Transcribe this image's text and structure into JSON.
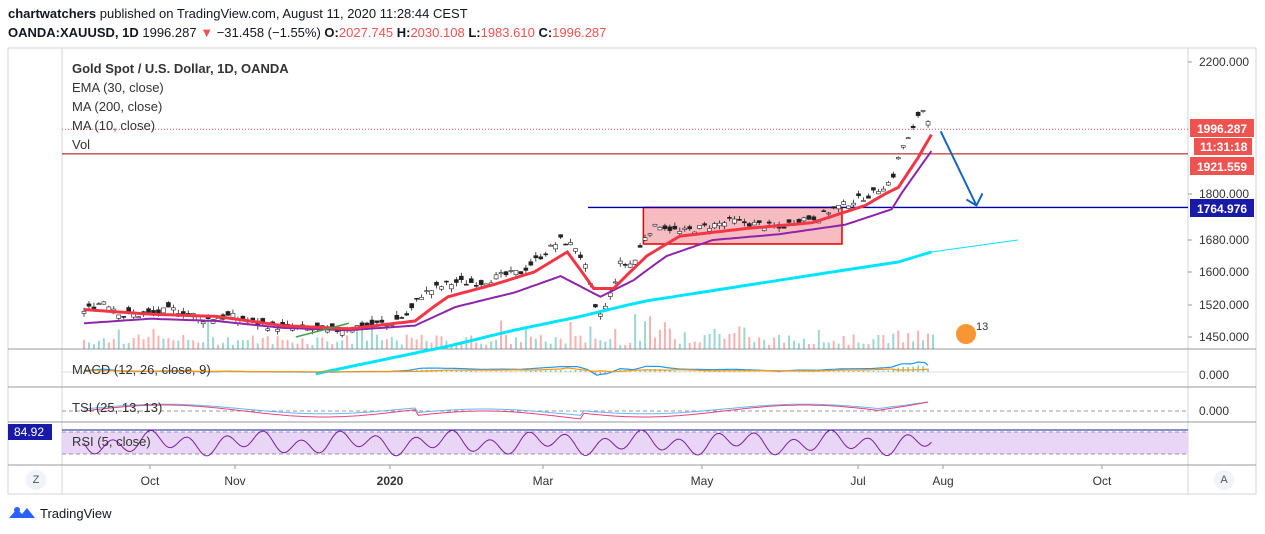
{
  "header": {
    "author": "chartwatchers",
    "published_text": "published on TradingView.com, August 11, 2020 11:28:44 CEST"
  },
  "ohlc": {
    "symbol": "OANDA:XAUUSD, 1D",
    "last": "1996.287",
    "arrow": "▼",
    "change": "−31.458 (−1.55%)",
    "o_label": "O:",
    "o": "2027.745",
    "h_label": "H:",
    "h": "2030.108",
    "l_label": "L:",
    "l": "1983.610",
    "c_label": "C:",
    "c": "1996.287"
  },
  "legend": {
    "title": "Gold Spot / U.S. Dollar, 1D, OANDA",
    "ema": "EMA (30, close)",
    "ma200": "MA (200, close)",
    "ma10": "MA (10, close)",
    "vol": "Vol",
    "macd": "MACD (12, 26, close, 9)",
    "tsi": "TSI (25, 13, 13)",
    "rsi": "RSI (5, close)"
  },
  "brand": {
    "name": "TradingView"
  },
  "buttons": {
    "z": "Z",
    "a": "A"
  },
  "colors": {
    "up": "#26a69a",
    "down": "#ef5350",
    "ema": "#f23645",
    "ma200": "#00e5ff",
    "ma10": "#8e24aa",
    "box_fill": "#f4a6ad",
    "box_stroke": "#e00000",
    "support": "#0000aa",
    "arrow": "#1565c0",
    "hline_red": "#b00000",
    "rsi_band": "#e9d5f5",
    "rsi_line": "#7b1fa2",
    "tsi_line": "#ec407a",
    "tsi_signal": "#64b5f6"
  },
  "chart_data": {
    "type": "candlestick",
    "symbol": "OANDA:XAUUSD",
    "interval": "1D",
    "x_labels": [
      "Oct",
      "Nov",
      "2020",
      "Mar",
      "May",
      "Jul",
      "Aug",
      "Oct"
    ],
    "y_ticks": [
      "2200.000",
      "1800.000",
      "1680.000",
      "1600.000",
      "1520.000",
      "1450.000"
    ],
    "ylim": [
      1400,
      2240
    ],
    "price_tags": [
      {
        "label": "1996.287",
        "sub": "11:31:18",
        "value": 1996.287,
        "color": "#ef5350"
      },
      {
        "label": "1921.559",
        "value": 1921.559,
        "color": "#ef5350"
      },
      {
        "label": "1764.976",
        "value": 1764.976,
        "color": "#1a1aa8"
      }
    ],
    "close_path": [
      {
        "m": 0.0,
        "p": 1505
      },
      {
        "m": 0.3,
        "p": 1530
      },
      {
        "m": 0.6,
        "p": 1498
      },
      {
        "m": 1.0,
        "p": 1500
      },
      {
        "m": 1.4,
        "p": 1510
      },
      {
        "m": 1.8,
        "p": 1490
      },
      {
        "m": 2.2,
        "p": 1495
      },
      {
        "m": 2.6,
        "p": 1480
      },
      {
        "m": 3.0,
        "p": 1472
      },
      {
        "m": 3.4,
        "p": 1468
      },
      {
        "m": 3.8,
        "p": 1465
      },
      {
        "m": 4.2,
        "p": 1475
      },
      {
        "m": 4.6,
        "p": 1480
      },
      {
        "m": 4.9,
        "p": 1500
      },
      {
        "m": 5.1,
        "p": 1545
      },
      {
        "m": 5.3,
        "p": 1560
      },
      {
        "m": 5.6,
        "p": 1575
      },
      {
        "m": 6.0,
        "p": 1575
      },
      {
        "m": 6.3,
        "p": 1590
      },
      {
        "m": 6.6,
        "p": 1600
      },
      {
        "m": 6.9,
        "p": 1640
      },
      {
        "m": 7.2,
        "p": 1680
      },
      {
        "m": 7.45,
        "p": 1660
      },
      {
        "m": 7.6,
        "p": 1600
      },
      {
        "m": 7.75,
        "p": 1490
      },
      {
        "m": 7.9,
        "p": 1520
      },
      {
        "m": 8.1,
        "p": 1620
      },
      {
        "m": 8.3,
        "p": 1620
      },
      {
        "m": 8.5,
        "p": 1700
      },
      {
        "m": 8.7,
        "p": 1720
      },
      {
        "m": 9.0,
        "p": 1700
      },
      {
        "m": 9.4,
        "p": 1715
      },
      {
        "m": 9.8,
        "p": 1730
      },
      {
        "m": 10.2,
        "p": 1720
      },
      {
        "m": 10.5,
        "p": 1710
      },
      {
        "m": 10.8,
        "p": 1735
      },
      {
        "m": 11.1,
        "p": 1740
      },
      {
        "m": 11.3,
        "p": 1760
      },
      {
        "m": 11.6,
        "p": 1780
      },
      {
        "m": 11.9,
        "p": 1800
      },
      {
        "m": 12.2,
        "p": 1840
      },
      {
        "m": 12.35,
        "p": 1940
      },
      {
        "m": 12.5,
        "p": 1980
      },
      {
        "m": 12.6,
        "p": 2040
      },
      {
        "m": 12.7,
        "p": 2060
      },
      {
        "m": 12.8,
        "p": 1996
      }
    ],
    "ema30_path": [
      {
        "m": 0.0,
        "p": 1510
      },
      {
        "m": 1.0,
        "p": 1500
      },
      {
        "m": 2.0,
        "p": 1495
      },
      {
        "m": 3.0,
        "p": 1475
      },
      {
        "m": 4.0,
        "p": 1468
      },
      {
        "m": 5.0,
        "p": 1485
      },
      {
        "m": 5.5,
        "p": 1540
      },
      {
        "m": 6.2,
        "p": 1570
      },
      {
        "m": 6.8,
        "p": 1600
      },
      {
        "m": 7.3,
        "p": 1650
      },
      {
        "m": 7.7,
        "p": 1560
      },
      {
        "m": 8.0,
        "p": 1560
      },
      {
        "m": 8.5,
        "p": 1640
      },
      {
        "m": 9.0,
        "p": 1690
      },
      {
        "m": 10.0,
        "p": 1710
      },
      {
        "m": 11.0,
        "p": 1725
      },
      {
        "m": 11.8,
        "p": 1770
      },
      {
        "m": 12.3,
        "p": 1820
      },
      {
        "m": 12.6,
        "p": 1910
      },
      {
        "m": 12.8,
        "p": 1980
      }
    ],
    "ma10_path": [
      {
        "m": 0.0,
        "p": 1480
      },
      {
        "m": 1.0,
        "p": 1490
      },
      {
        "m": 2.0,
        "p": 1485
      },
      {
        "m": 3.0,
        "p": 1470
      },
      {
        "m": 4.0,
        "p": 1465
      },
      {
        "m": 5.0,
        "p": 1475
      },
      {
        "m": 5.6,
        "p": 1515
      },
      {
        "m": 6.5,
        "p": 1550
      },
      {
        "m": 7.2,
        "p": 1590
      },
      {
        "m": 7.8,
        "p": 1540
      },
      {
        "m": 8.3,
        "p": 1580
      },
      {
        "m": 8.8,
        "p": 1640
      },
      {
        "m": 9.5,
        "p": 1680
      },
      {
        "m": 10.5,
        "p": 1695
      },
      {
        "m": 11.5,
        "p": 1720
      },
      {
        "m": 12.2,
        "p": 1760
      },
      {
        "m": 12.8,
        "p": 1930
      }
    ],
    "ma200_path": [
      {
        "m": 3.5,
        "p": 1370
      },
      {
        "m": 4.5,
        "p": 1400
      },
      {
        "m": 5.5,
        "p": 1430
      },
      {
        "m": 6.5,
        "p": 1465
      },
      {
        "m": 7.5,
        "p": 1495
      },
      {
        "m": 8.5,
        "p": 1530
      },
      {
        "m": 9.5,
        "p": 1555
      },
      {
        "m": 10.5,
        "p": 1580
      },
      {
        "m": 11.5,
        "p": 1605
      },
      {
        "m": 12.3,
        "p": 1625
      },
      {
        "m": 12.8,
        "p": 1650
      }
    ],
    "consolidation_box": {
      "m0": 8.45,
      "m1": 11.45,
      "p0": 1670,
      "p1": 1765
    },
    "support_level": 1764.976,
    "resistance_level": 1921.559,
    "projection_arrow": {
      "from": {
        "m": 12.85,
        "p": 1990
      },
      "to": {
        "m": 13.3,
        "p": 1770
      }
    },
    "trend_line": {
      "from": {
        "m": 3.2,
        "p": 1450
      },
      "to": {
        "m": 4.0,
        "p": 1480
      }
    }
  }
}
